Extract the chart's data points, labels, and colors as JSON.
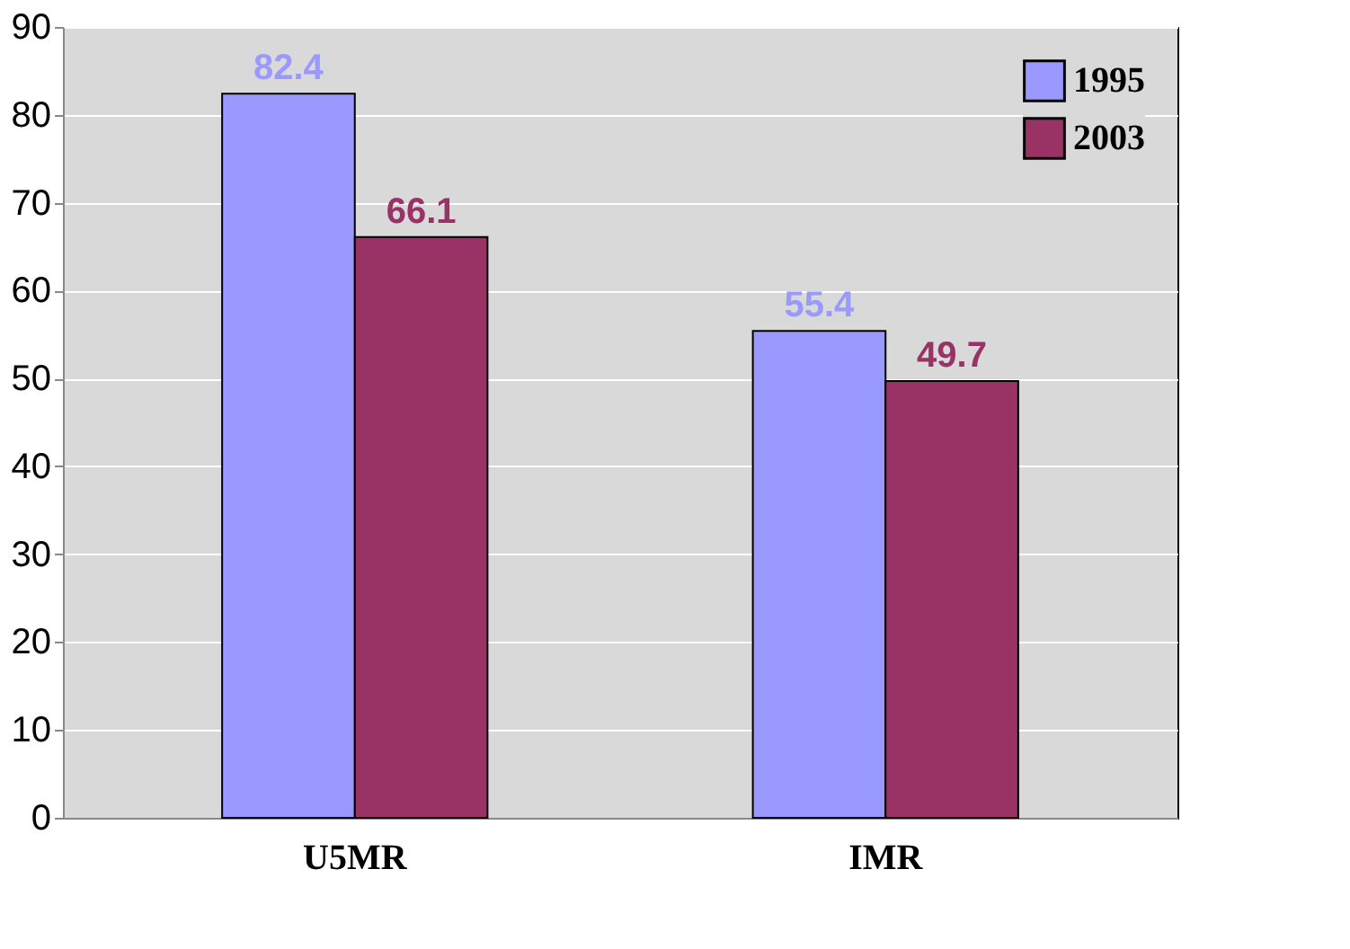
{
  "chart_data": {
    "type": "bar",
    "categories": [
      "U5MR",
      "IMR"
    ],
    "series": [
      {
        "name": "1995",
        "color": "#9999ff",
        "values": [
          82.4,
          55.4
        ]
      },
      {
        "name": "2003",
        "color": "#993366",
        "values": [
          66.1,
          49.7
        ]
      }
    ],
    "ylim": [
      0,
      90
    ],
    "yticks": [
      0,
      10,
      20,
      30,
      40,
      50,
      60,
      70,
      80,
      90
    ],
    "grid": "y",
    "legend": "top right",
    "data_labels": true
  }
}
